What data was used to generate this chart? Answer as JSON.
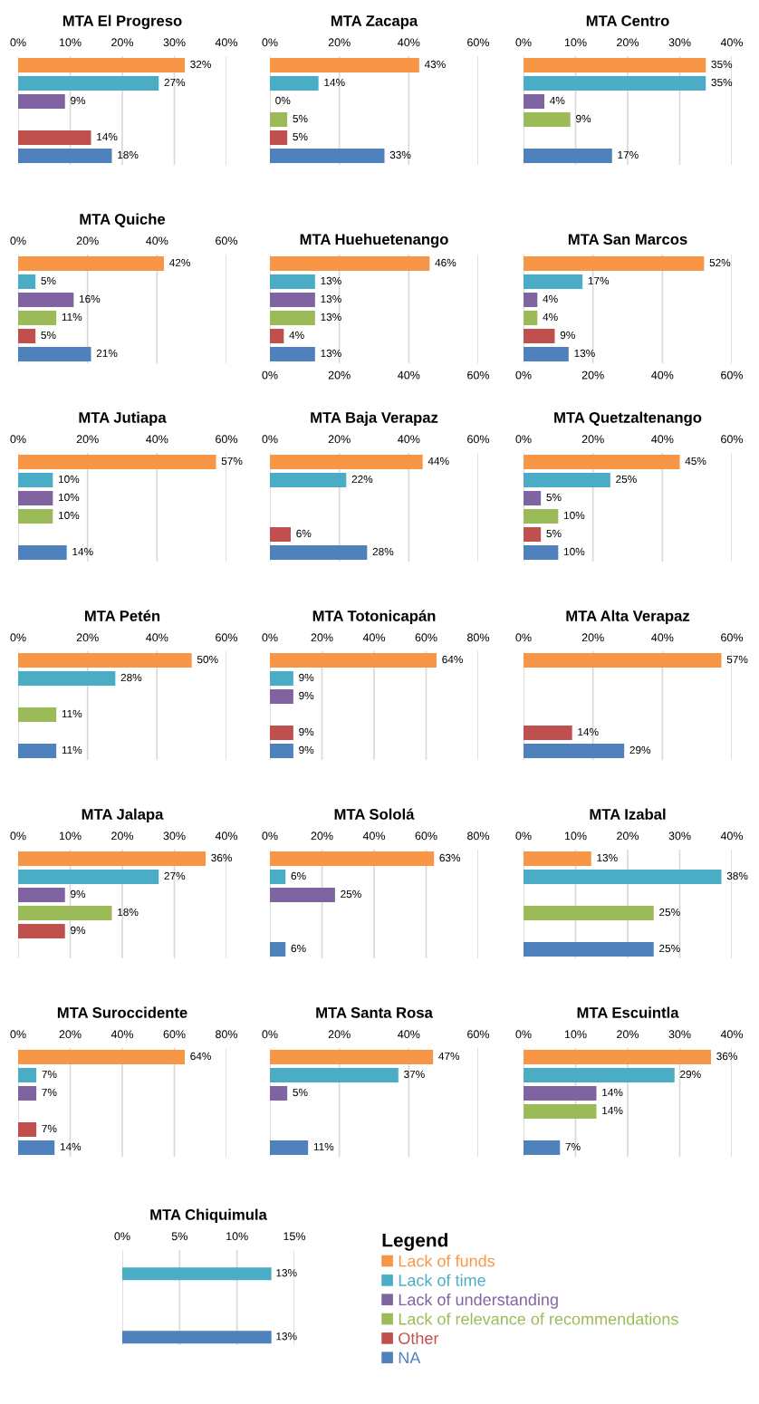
{
  "chart_data": [
    {
      "type": "bar",
      "orientation": "horizontal",
      "title": "MTA El Progreso",
      "categories": [
        null,
        null,
        null,
        null,
        null,
        null
      ],
      "values": [
        32,
        27,
        9,
        null,
        14,
        18
      ],
      "value_labels": [
        "32%",
        "27%",
        "9%",
        null,
        "14%",
        "18%"
      ],
      "colors": [
        "#f79646",
        "#4bacc6",
        "#8064a2",
        "#9bbb59",
        "#c0504d",
        "#4f81bd"
      ],
      "xlim": [
        0,
        40
      ],
      "xticks": [
        {
          "value": 0,
          "label": "0%"
        },
        {
          "value": 10,
          "label": "10%"
        },
        {
          "value": 20,
          "label": "20%"
        },
        {
          "value": 30,
          "label": "30%"
        },
        {
          "value": 40,
          "label": "40%"
        }
      ],
      "grid": "x"
    },
    {
      "type": "bar",
      "orientation": "horizontal",
      "title": "MTA Zacapa",
      "categories": [
        null,
        null,
        null,
        null,
        null,
        null
      ],
      "values": [
        43,
        14,
        0,
        5,
        5,
        33
      ],
      "value_labels": [
        "43%",
        "14%",
        "0%",
        "5%",
        "5%",
        "33%"
      ],
      "colors": [
        "#f79646",
        "#4bacc6",
        "#8064a2",
        "#9bbb59",
        "#c0504d",
        "#4f81bd"
      ],
      "xlim": [
        0,
        60
      ],
      "xticks": [
        {
          "value": 0,
          "label": "0%"
        },
        {
          "value": 20,
          "label": "20%"
        },
        {
          "value": 40,
          "label": "40%"
        },
        {
          "value": 60,
          "label": "60%"
        }
      ],
      "grid": "x"
    },
    {
      "type": "bar",
      "orientation": "horizontal",
      "title": "MTA Centro",
      "categories": [
        null,
        null,
        null,
        null,
        null,
        null
      ],
      "values": [
        35,
        35,
        4,
        9,
        null,
        17
      ],
      "value_labels": [
        "35%",
        "35%",
        "4%",
        "9%",
        null,
        "17%"
      ],
      "colors": [
        "#f79646",
        "#4bacc6",
        "#8064a2",
        "#9bbb59",
        "#c0504d",
        "#4f81bd"
      ],
      "xlim": [
        0,
        40
      ],
      "xticks": [
        {
          "value": 0,
          "label": "0%"
        },
        {
          "value": 10,
          "label": "10%"
        },
        {
          "value": 20,
          "label": "20%"
        },
        {
          "value": 30,
          "label": "30%"
        },
        {
          "value": 40,
          "label": "40%"
        }
      ],
      "grid": "x"
    },
    {
      "type": "bar",
      "orientation": "horizontal",
      "title": "MTA Quiche",
      "categories": [
        null,
        null,
        null,
        null,
        null,
        null
      ],
      "values": [
        42,
        5,
        16,
        11,
        5,
        21
      ],
      "value_labels": [
        "42%",
        "5%",
        "16%",
        "11%",
        "5%",
        "21%"
      ],
      "colors": [
        "#f79646",
        "#4bacc6",
        "#8064a2",
        "#9bbb59",
        "#c0504d",
        "#4f81bd"
      ],
      "xlim": [
        0,
        60
      ],
      "xticks": [
        {
          "value": 0,
          "label": "0%"
        },
        {
          "value": 20,
          "label": "20%"
        },
        {
          "value": 40,
          "label": "40%"
        },
        {
          "value": 60,
          "label": "60%"
        }
      ],
      "grid": "x"
    },
    {
      "type": "bar",
      "orientation": "horizontal",
      "title": "MTA Huehuetenango",
      "categories": [
        null,
        null,
        null,
        null,
        null,
        null
      ],
      "values": [
        46,
        13,
        13,
        13,
        4,
        13
      ],
      "value_labels": [
        "46%",
        "13%",
        "13%",
        "13%",
        "4%",
        "13%"
      ],
      "colors": [
        "#f79646",
        "#4bacc6",
        "#8064a2",
        "#9bbb59",
        "#c0504d",
        "#4f81bd"
      ],
      "xlim": [
        0,
        60
      ],
      "xticks": [
        {
          "value": 0,
          "label": "0%"
        },
        {
          "value": 20,
          "label": "20%"
        },
        {
          "value": 40,
          "label": "40%"
        },
        {
          "value": 60,
          "label": "60%"
        }
      ],
      "grid": "x"
    },
    {
      "type": "bar",
      "orientation": "horizontal",
      "title": "MTA San Marcos",
      "categories": [
        null,
        null,
        null,
        null,
        null,
        null
      ],
      "values": [
        52,
        17,
        4,
        4,
        9,
        13
      ],
      "value_labels": [
        "52%",
        "17%",
        "4%",
        "4%",
        "9%",
        "13%"
      ],
      "colors": [
        "#f79646",
        "#4bacc6",
        "#8064a2",
        "#9bbb59",
        "#c0504d",
        "#4f81bd"
      ],
      "xlim": [
        0,
        60
      ],
      "xticks": [
        {
          "value": 0,
          "label": "0%"
        },
        {
          "value": 20,
          "label": "20%"
        },
        {
          "value": 40,
          "label": "40%"
        },
        {
          "value": 60,
          "label": "60%"
        }
      ],
      "grid": "x"
    },
    {
      "type": "bar",
      "orientation": "horizontal",
      "title": "MTA Jutiapa",
      "categories": [
        null,
        null,
        null,
        null,
        null,
        null
      ],
      "values": [
        57,
        10,
        10,
        10,
        null,
        14
      ],
      "value_labels": [
        "57%",
        "10%",
        "10%",
        "10%",
        null,
        "14%"
      ],
      "colors": [
        "#f79646",
        "#4bacc6",
        "#8064a2",
        "#9bbb59",
        "#c0504d",
        "#4f81bd"
      ],
      "xlim": [
        0,
        60
      ],
      "xticks": [
        {
          "value": 0,
          "label": "0%"
        },
        {
          "value": 20,
          "label": "20%"
        },
        {
          "value": 40,
          "label": "40%"
        },
        {
          "value": 60,
          "label": "60%"
        }
      ],
      "grid": "x"
    },
    {
      "type": "bar",
      "orientation": "horizontal",
      "title": "MTA Baja Verapaz",
      "categories": [
        null,
        null,
        null,
        null,
        null,
        null
      ],
      "values": [
        44,
        22,
        null,
        null,
        6,
        28
      ],
      "value_labels": [
        "44%",
        "22%",
        null,
        null,
        "6%",
        "28%"
      ],
      "colors": [
        "#f79646",
        "#4bacc6",
        "#8064a2",
        "#9bbb59",
        "#c0504d",
        "#4f81bd"
      ],
      "xlim": [
        0,
        60
      ],
      "xticks": [
        {
          "value": 0,
          "label": "0%"
        },
        {
          "value": 20,
          "label": "20%"
        },
        {
          "value": 40,
          "label": "40%"
        },
        {
          "value": 60,
          "label": "60%"
        }
      ],
      "grid": "x"
    },
    {
      "type": "bar",
      "orientation": "horizontal",
      "title": "MTA Quetzaltenango",
      "categories": [
        null,
        null,
        null,
        null,
        null,
        null
      ],
      "values": [
        45,
        25,
        5,
        10,
        5,
        10
      ],
      "value_labels": [
        "45%",
        "25%",
        "5%",
        "10%",
        "5%",
        "10%"
      ],
      "colors": [
        "#f79646",
        "#4bacc6",
        "#8064a2",
        "#9bbb59",
        "#c0504d",
        "#4f81bd"
      ],
      "xlim": [
        0,
        60
      ],
      "xticks": [
        {
          "value": 0,
          "label": "0%"
        },
        {
          "value": 20,
          "label": "20%"
        },
        {
          "value": 40,
          "label": "40%"
        },
        {
          "value": 60,
          "label": "60%"
        }
      ],
      "grid": "x"
    },
    {
      "type": "bar",
      "orientation": "horizontal",
      "title": "MTA Petén",
      "categories": [
        null,
        null,
        null,
        null,
        null,
        null
      ],
      "values": [
        50,
        28,
        null,
        11,
        null,
        11
      ],
      "value_labels": [
        "50%",
        "28%",
        null,
        "11%",
        null,
        "11%"
      ],
      "colors": [
        "#f79646",
        "#4bacc6",
        "#8064a2",
        "#9bbb59",
        "#c0504d",
        "#4f81bd"
      ],
      "xlim": [
        0,
        60
      ],
      "xticks": [
        {
          "value": 0,
          "label": "0%"
        },
        {
          "value": 20,
          "label": "20%"
        },
        {
          "value": 40,
          "label": "40%"
        },
        {
          "value": 60,
          "label": "60%"
        }
      ],
      "grid": "x"
    },
    {
      "type": "bar",
      "orientation": "horizontal",
      "title": "MTA Totonicapán",
      "categories": [
        null,
        null,
        null,
        null,
        null,
        null
      ],
      "values": [
        64,
        9,
        9,
        null,
        9,
        9
      ],
      "value_labels": [
        "64%",
        "9%",
        "9%",
        null,
        "9%",
        "9%"
      ],
      "colors": [
        "#f79646",
        "#4bacc6",
        "#8064a2",
        "#9bbb59",
        "#c0504d",
        "#4f81bd"
      ],
      "xlim": [
        0,
        80
      ],
      "xticks": [
        {
          "value": 0,
          "label": "0%"
        },
        {
          "value": 20,
          "label": "20%"
        },
        {
          "value": 40,
          "label": "40%"
        },
        {
          "value": 60,
          "label": "60%"
        },
        {
          "value": 80,
          "label": "80%"
        }
      ],
      "grid": "x"
    },
    {
      "type": "bar",
      "orientation": "horizontal",
      "title": "MTA Alta Verapaz",
      "categories": [
        null,
        null,
        null,
        null,
        null,
        null
      ],
      "values": [
        57,
        null,
        null,
        null,
        14,
        29
      ],
      "value_labels": [
        "57%",
        null,
        null,
        null,
        "14%",
        "29%"
      ],
      "colors": [
        "#f79646",
        "#4bacc6",
        "#8064a2",
        "#9bbb59",
        "#c0504d",
        "#4f81bd"
      ],
      "xlim": [
        0,
        60
      ],
      "xticks": [
        {
          "value": 0,
          "label": "0%"
        },
        {
          "value": 20,
          "label": "20%"
        },
        {
          "value": 40,
          "label": "40%"
        },
        {
          "value": 60,
          "label": "60%"
        }
      ],
      "grid": "x"
    },
    {
      "type": "bar",
      "orientation": "horizontal",
      "title": "MTA Jalapa",
      "categories": [
        null,
        null,
        null,
        null,
        null,
        null
      ],
      "values": [
        36,
        27,
        9,
        18,
        9,
        null
      ],
      "value_labels": [
        "36%",
        "27%",
        "9%",
        "18%",
        "9%",
        null
      ],
      "colors": [
        "#f79646",
        "#4bacc6",
        "#8064a2",
        "#9bbb59",
        "#c0504d",
        "#4f81bd"
      ],
      "xlim": [
        0,
        40
      ],
      "xticks": [
        {
          "value": 0,
          "label": "0%"
        },
        {
          "value": 10,
          "label": "10%"
        },
        {
          "value": 20,
          "label": "20%"
        },
        {
          "value": 30,
          "label": "30%"
        },
        {
          "value": 40,
          "label": "40%"
        }
      ],
      "grid": "x"
    },
    {
      "type": "bar",
      "orientation": "horizontal",
      "title": "MTA Sololá",
      "categories": [
        null,
        null,
        null,
        null,
        null,
        null
      ],
      "values": [
        63,
        6,
        25,
        null,
        null,
        6
      ],
      "value_labels": [
        "63%",
        "6%",
        "25%",
        null,
        null,
        "6%"
      ],
      "colors": [
        "#f79646",
        "#4bacc6",
        "#8064a2",
        "#9bbb59",
        "#c0504d",
        "#4f81bd"
      ],
      "xlim": [
        0,
        80
      ],
      "xticks": [
        {
          "value": 0,
          "label": "0%"
        },
        {
          "value": 20,
          "label": "20%"
        },
        {
          "value": 40,
          "label": "40%"
        },
        {
          "value": 60,
          "label": "60%"
        },
        {
          "value": 80,
          "label": "80%"
        }
      ],
      "grid": "x"
    },
    {
      "type": "bar",
      "orientation": "horizontal",
      "title": "MTA Izabal",
      "categories": [
        null,
        null,
        null,
        null,
        null,
        null
      ],
      "values": [
        13,
        38,
        null,
        25,
        null,
        25
      ],
      "value_labels": [
        "13%",
        "38%",
        null,
        "25%",
        null,
        "25%"
      ],
      "colors": [
        "#f79646",
        "#4bacc6",
        "#8064a2",
        "#9bbb59",
        "#c0504d",
        "#4f81bd"
      ],
      "xlim": [
        0,
        40
      ],
      "xticks": [
        {
          "value": 0,
          "label": "0%"
        },
        {
          "value": 10,
          "label": "10%"
        },
        {
          "value": 20,
          "label": "20%"
        },
        {
          "value": 30,
          "label": "30%"
        },
        {
          "value": 40,
          "label": "40%"
        }
      ],
      "grid": "x"
    },
    {
      "type": "bar",
      "orientation": "horizontal",
      "title": "MTA Suroccidente",
      "categories": [
        null,
        null,
        null,
        null,
        null,
        null
      ],
      "values": [
        64,
        7,
        7,
        null,
        7,
        14
      ],
      "value_labels": [
        "64%",
        "7%",
        "7%",
        null,
        "7%",
        "14%"
      ],
      "colors": [
        "#f79646",
        "#4bacc6",
        "#8064a2",
        "#9bbb59",
        "#c0504d",
        "#4f81bd"
      ],
      "xlim": [
        0,
        80
      ],
      "xticks": [
        {
          "value": 0,
          "label": "0%"
        },
        {
          "value": 20,
          "label": "20%"
        },
        {
          "value": 40,
          "label": "40%"
        },
        {
          "value": 60,
          "label": "60%"
        },
        {
          "value": 80,
          "label": "80%"
        }
      ],
      "grid": "x"
    },
    {
      "type": "bar",
      "orientation": "horizontal",
      "title": "MTA Santa Rosa",
      "categories": [
        null,
        null,
        null,
        null,
        null,
        null
      ],
      "values": [
        47,
        37,
        5,
        null,
        null,
        11
      ],
      "value_labels": [
        "47%",
        "37%",
        "5%",
        null,
        null,
        "11%"
      ],
      "colors": [
        "#f79646",
        "#4bacc6",
        "#8064a2",
        "#9bbb59",
        "#c0504d",
        "#4f81bd"
      ],
      "xlim": [
        0,
        60
      ],
      "xticks": [
        {
          "value": 0,
          "label": "0%"
        },
        {
          "value": 20,
          "label": "20%"
        },
        {
          "value": 40,
          "label": "40%"
        },
        {
          "value": 60,
          "label": "60%"
        }
      ],
      "grid": "x"
    },
    {
      "type": "bar",
      "orientation": "horizontal",
      "title": "MTA Escuintla",
      "categories": [
        null,
        null,
        null,
        null,
        null,
        null
      ],
      "values": [
        36,
        29,
        14,
        14,
        null,
        7
      ],
      "value_labels": [
        "36%",
        "29%",
        "14%",
        "14%",
        null,
        "7%"
      ],
      "colors": [
        "#f79646",
        "#4bacc6",
        "#8064a2",
        "#9bbb59",
        "#c0504d",
        "#4f81bd"
      ],
      "xlim": [
        0,
        40
      ],
      "xticks": [
        {
          "value": 0,
          "label": "0%"
        },
        {
          "value": 10,
          "label": "10%"
        },
        {
          "value": 20,
          "label": "20%"
        },
        {
          "value": 30,
          "label": "30%"
        },
        {
          "value": 40,
          "label": "40%"
        }
      ],
      "grid": "x"
    },
    {
      "type": "bar",
      "orientation": "horizontal",
      "title": "MTA Chiquimula",
      "legend_title": "Legend",
      "legend": "right",
      "categories": [
        null,
        null,
        null,
        null,
        null,
        null
      ],
      "series": [
        {
          "name": "Lack of funds",
          "color": "#f79646",
          "values": [
            null,
            null,
            null,
            null,
            null,
            null
          ]
        },
        {
          "name": "Lack of time",
          "color": "#4bacc6",
          "values": [
            null,
            13,
            null,
            null,
            null,
            null
          ],
          "value_labels": [
            null,
            "13%",
            null,
            null,
            null,
            null
          ]
        },
        {
          "name": "Lack of understanding",
          "color": "#8064a2",
          "values": [
            null,
            null,
            null,
            null,
            null,
            null
          ]
        },
        {
          "name": "Lack of relevance of recommendations",
          "color": "#9bbb59",
          "values": [
            null,
            null,
            null,
            null,
            null,
            null
          ]
        },
        {
          "name": "Other",
          "color": "#c0504d",
          "values": [
            null,
            null,
            null,
            null,
            null,
            null
          ]
        },
        {
          "name": "NA",
          "color": "#4f81bd",
          "values": [
            null,
            null,
            null,
            null,
            null,
            13
          ],
          "value_labels": [
            null,
            null,
            null,
            null,
            null,
            "13%"
          ]
        }
      ],
      "xlim": [
        0,
        15
      ],
      "xticks": [
        {
          "value": 0,
          "label": "0%"
        },
        {
          "value": 5,
          "label": "5%"
        },
        {
          "value": 10,
          "label": "10%"
        },
        {
          "value": 15,
          "label": "15%"
        }
      ],
      "grid": "x"
    }
  ]
}
